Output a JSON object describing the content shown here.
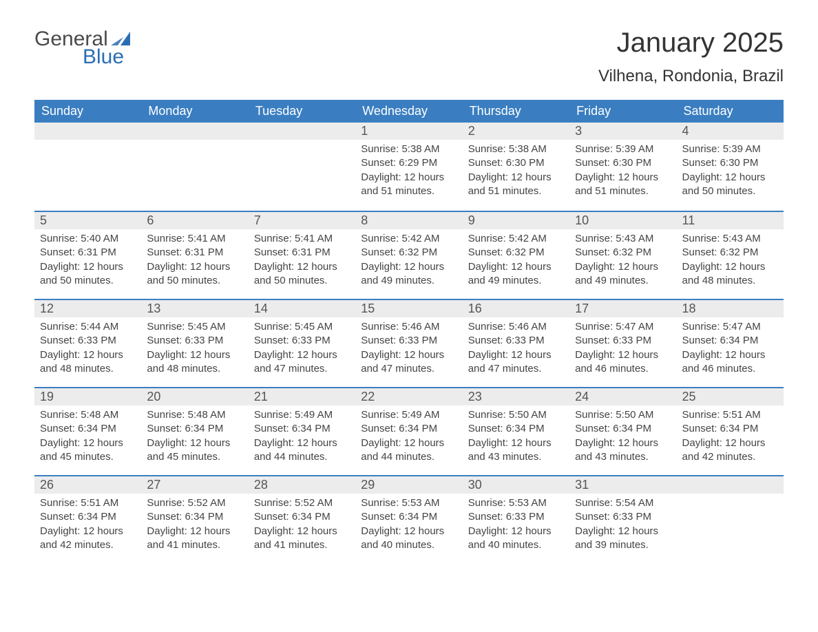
{
  "logo": {
    "general": "General",
    "blue": "Blue",
    "flag_color": "#2a6db5"
  },
  "title": "January 2025",
  "location": "Vilhena, Rondonia, Brazil",
  "colors": {
    "header_bg": "#3a7ec1",
    "header_text": "#ffffff",
    "daynum_bg": "#ececec",
    "row_border": "#3a7ec1",
    "body_text": "#444444",
    "title_text": "#333333"
  },
  "fonts": {
    "title_size": 40,
    "location_size": 24,
    "header_size": 18,
    "daynum_size": 18,
    "cell_size": 15
  },
  "day_headers": [
    "Sunday",
    "Monday",
    "Tuesday",
    "Wednesday",
    "Thursday",
    "Friday",
    "Saturday"
  ],
  "weeks": [
    [
      null,
      null,
      null,
      {
        "n": "1",
        "sunrise": "Sunrise: 5:38 AM",
        "sunset": "Sunset: 6:29 PM",
        "d1": "Daylight: 12 hours",
        "d2": "and 51 minutes."
      },
      {
        "n": "2",
        "sunrise": "Sunrise: 5:38 AM",
        "sunset": "Sunset: 6:30 PM",
        "d1": "Daylight: 12 hours",
        "d2": "and 51 minutes."
      },
      {
        "n": "3",
        "sunrise": "Sunrise: 5:39 AM",
        "sunset": "Sunset: 6:30 PM",
        "d1": "Daylight: 12 hours",
        "d2": "and 51 minutes."
      },
      {
        "n": "4",
        "sunrise": "Sunrise: 5:39 AM",
        "sunset": "Sunset: 6:30 PM",
        "d1": "Daylight: 12 hours",
        "d2": "and 50 minutes."
      }
    ],
    [
      {
        "n": "5",
        "sunrise": "Sunrise: 5:40 AM",
        "sunset": "Sunset: 6:31 PM",
        "d1": "Daylight: 12 hours",
        "d2": "and 50 minutes."
      },
      {
        "n": "6",
        "sunrise": "Sunrise: 5:41 AM",
        "sunset": "Sunset: 6:31 PM",
        "d1": "Daylight: 12 hours",
        "d2": "and 50 minutes."
      },
      {
        "n": "7",
        "sunrise": "Sunrise: 5:41 AM",
        "sunset": "Sunset: 6:31 PM",
        "d1": "Daylight: 12 hours",
        "d2": "and 50 minutes."
      },
      {
        "n": "8",
        "sunrise": "Sunrise: 5:42 AM",
        "sunset": "Sunset: 6:32 PM",
        "d1": "Daylight: 12 hours",
        "d2": "and 49 minutes."
      },
      {
        "n": "9",
        "sunrise": "Sunrise: 5:42 AM",
        "sunset": "Sunset: 6:32 PM",
        "d1": "Daylight: 12 hours",
        "d2": "and 49 minutes."
      },
      {
        "n": "10",
        "sunrise": "Sunrise: 5:43 AM",
        "sunset": "Sunset: 6:32 PM",
        "d1": "Daylight: 12 hours",
        "d2": "and 49 minutes."
      },
      {
        "n": "11",
        "sunrise": "Sunrise: 5:43 AM",
        "sunset": "Sunset: 6:32 PM",
        "d1": "Daylight: 12 hours",
        "d2": "and 48 minutes."
      }
    ],
    [
      {
        "n": "12",
        "sunrise": "Sunrise: 5:44 AM",
        "sunset": "Sunset: 6:33 PM",
        "d1": "Daylight: 12 hours",
        "d2": "and 48 minutes."
      },
      {
        "n": "13",
        "sunrise": "Sunrise: 5:45 AM",
        "sunset": "Sunset: 6:33 PM",
        "d1": "Daylight: 12 hours",
        "d2": "and 48 minutes."
      },
      {
        "n": "14",
        "sunrise": "Sunrise: 5:45 AM",
        "sunset": "Sunset: 6:33 PM",
        "d1": "Daylight: 12 hours",
        "d2": "and 47 minutes."
      },
      {
        "n": "15",
        "sunrise": "Sunrise: 5:46 AM",
        "sunset": "Sunset: 6:33 PM",
        "d1": "Daylight: 12 hours",
        "d2": "and 47 minutes."
      },
      {
        "n": "16",
        "sunrise": "Sunrise: 5:46 AM",
        "sunset": "Sunset: 6:33 PM",
        "d1": "Daylight: 12 hours",
        "d2": "and 47 minutes."
      },
      {
        "n": "17",
        "sunrise": "Sunrise: 5:47 AM",
        "sunset": "Sunset: 6:33 PM",
        "d1": "Daylight: 12 hours",
        "d2": "and 46 minutes."
      },
      {
        "n": "18",
        "sunrise": "Sunrise: 5:47 AM",
        "sunset": "Sunset: 6:34 PM",
        "d1": "Daylight: 12 hours",
        "d2": "and 46 minutes."
      }
    ],
    [
      {
        "n": "19",
        "sunrise": "Sunrise: 5:48 AM",
        "sunset": "Sunset: 6:34 PM",
        "d1": "Daylight: 12 hours",
        "d2": "and 45 minutes."
      },
      {
        "n": "20",
        "sunrise": "Sunrise: 5:48 AM",
        "sunset": "Sunset: 6:34 PM",
        "d1": "Daylight: 12 hours",
        "d2": "and 45 minutes."
      },
      {
        "n": "21",
        "sunrise": "Sunrise: 5:49 AM",
        "sunset": "Sunset: 6:34 PM",
        "d1": "Daylight: 12 hours",
        "d2": "and 44 minutes."
      },
      {
        "n": "22",
        "sunrise": "Sunrise: 5:49 AM",
        "sunset": "Sunset: 6:34 PM",
        "d1": "Daylight: 12 hours",
        "d2": "and 44 minutes."
      },
      {
        "n": "23",
        "sunrise": "Sunrise: 5:50 AM",
        "sunset": "Sunset: 6:34 PM",
        "d1": "Daylight: 12 hours",
        "d2": "and 43 minutes."
      },
      {
        "n": "24",
        "sunrise": "Sunrise: 5:50 AM",
        "sunset": "Sunset: 6:34 PM",
        "d1": "Daylight: 12 hours",
        "d2": "and 43 minutes."
      },
      {
        "n": "25",
        "sunrise": "Sunrise: 5:51 AM",
        "sunset": "Sunset: 6:34 PM",
        "d1": "Daylight: 12 hours",
        "d2": "and 42 minutes."
      }
    ],
    [
      {
        "n": "26",
        "sunrise": "Sunrise: 5:51 AM",
        "sunset": "Sunset: 6:34 PM",
        "d1": "Daylight: 12 hours",
        "d2": "and 42 minutes."
      },
      {
        "n": "27",
        "sunrise": "Sunrise: 5:52 AM",
        "sunset": "Sunset: 6:34 PM",
        "d1": "Daylight: 12 hours",
        "d2": "and 41 minutes."
      },
      {
        "n": "28",
        "sunrise": "Sunrise: 5:52 AM",
        "sunset": "Sunset: 6:34 PM",
        "d1": "Daylight: 12 hours",
        "d2": "and 41 minutes."
      },
      {
        "n": "29",
        "sunrise": "Sunrise: 5:53 AM",
        "sunset": "Sunset: 6:34 PM",
        "d1": "Daylight: 12 hours",
        "d2": "and 40 minutes."
      },
      {
        "n": "30",
        "sunrise": "Sunrise: 5:53 AM",
        "sunset": "Sunset: 6:33 PM",
        "d1": "Daylight: 12 hours",
        "d2": "and 40 minutes."
      },
      {
        "n": "31",
        "sunrise": "Sunrise: 5:54 AM",
        "sunset": "Sunset: 6:33 PM",
        "d1": "Daylight: 12 hours",
        "d2": "and 39 minutes."
      },
      null
    ]
  ]
}
